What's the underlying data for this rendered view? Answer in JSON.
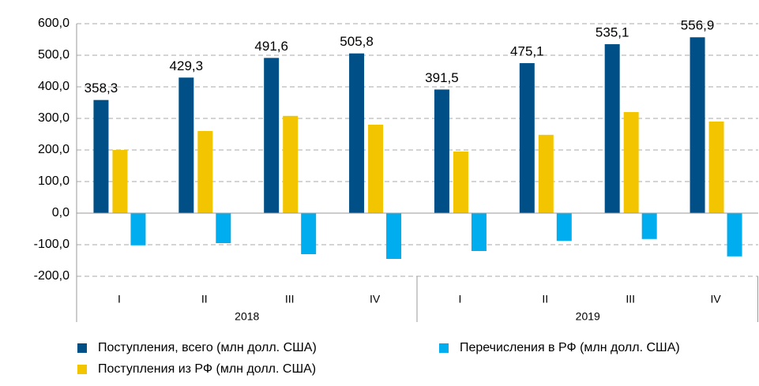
{
  "chart_data": {
    "type": "bar",
    "categories": [
      "I",
      "II",
      "III",
      "IV",
      "I",
      "II",
      "III",
      "IV"
    ],
    "x_groups": [
      {
        "label": "2018",
        "count": 4
      },
      {
        "label": "2019",
        "count": 4
      }
    ],
    "series": [
      {
        "name": "Поступления, всего (млн долл. США)",
        "color": "#004f86",
        "values": [
          358.3,
          429.3,
          491.6,
          505.8,
          391.5,
          475.1,
          535.1,
          556.9
        ],
        "value_labels": [
          "358,3",
          "429,3",
          "491,6",
          "505,8",
          "391,5",
          "475,1",
          "535,1",
          "556,9"
        ]
      },
      {
        "name": "Поступления из РФ (млн долл. США)",
        "color": "#f2c500",
        "values": [
          200,
          260,
          308,
          280,
          195,
          248,
          320,
          290
        ]
      },
      {
        "name": "Перечисления в РФ (млн долл. США)",
        "color": "#00aeef",
        "values": [
          -102,
          -95,
          -130,
          -145,
          -120,
          -88,
          -82,
          -137
        ]
      }
    ],
    "ylim": [
      -200,
      600
    ],
    "yticks": [
      {
        "value": -200,
        "label": "-200,0"
      },
      {
        "value": -100,
        "label": "-100,0"
      },
      {
        "value": 0,
        "label": "0,0"
      },
      {
        "value": 100,
        "label": "100,0"
      },
      {
        "value": 200,
        "label": "200,0"
      },
      {
        "value": 300,
        "label": "300,0"
      },
      {
        "value": 400,
        "label": "400,0"
      },
      {
        "value": 500,
        "label": "500,0"
      },
      {
        "value": 600,
        "label": "600,0"
      }
    ],
    "grid": true
  }
}
